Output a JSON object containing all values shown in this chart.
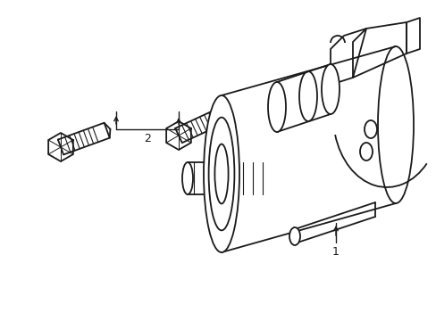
{
  "background_color": "#ffffff",
  "line_color": "#1a1a1a",
  "line_width": 1.3,
  "fig_width": 4.89,
  "fig_height": 3.6,
  "dpi": 100,
  "label_1": "1",
  "label_2": "2"
}
